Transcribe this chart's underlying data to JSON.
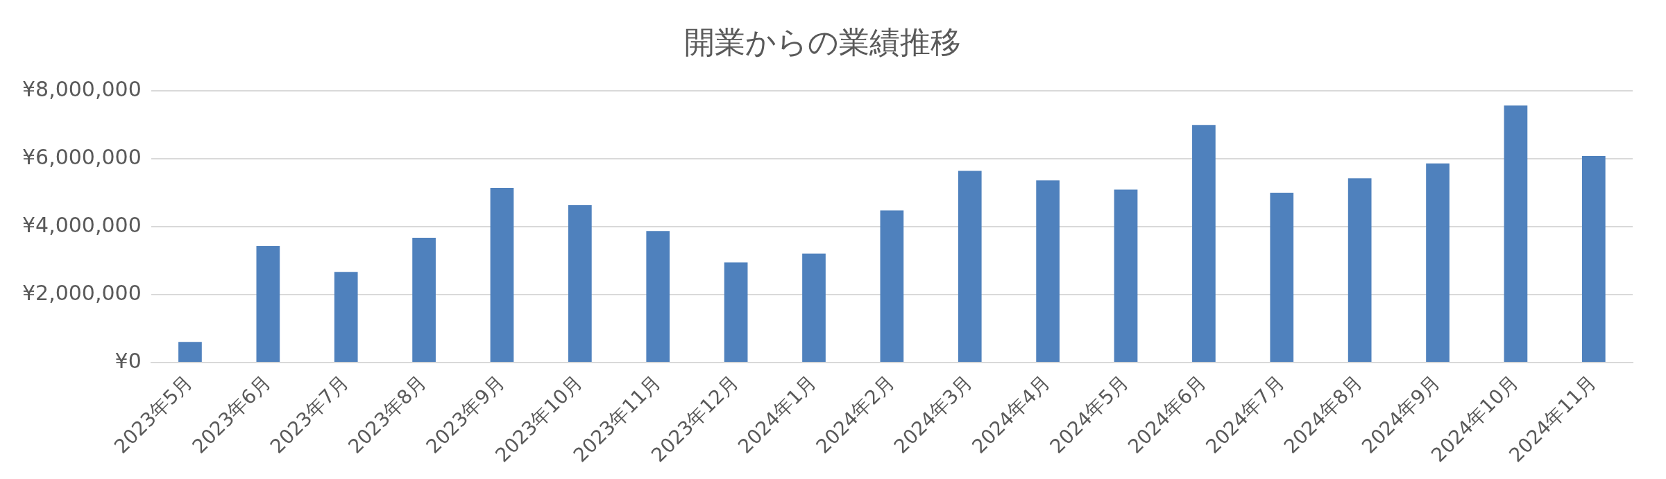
{
  "chart_data": {
    "type": "bar",
    "title": "開業からの業績推移",
    "categories": [
      "2023年5月",
      "2023年6月",
      "2023年7月",
      "2023年8月",
      "2023年9月",
      "2023年10月",
      "2023年11月",
      "2023年12月",
      "2024年1月",
      "2024年2月",
      "2024年3月",
      "2024年4月",
      "2024年5月",
      "2024年6月",
      "2024年7月",
      "2024年8月",
      "2024年9月",
      "2024年10月",
      "2024年11月"
    ],
    "values": [
      610000,
      3430000,
      2670000,
      3670000,
      5140000,
      4630000,
      3870000,
      2950000,
      3210000,
      4480000,
      5640000,
      5360000,
      5090000,
      6990000,
      5000000,
      5420000,
      5860000,
      7560000,
      6080000
    ],
    "color": "#4f81bd",
    "ylim": [
      0,
      8000000
    ],
    "yticks": [
      {
        "value": 0,
        "label": "¥0"
      },
      {
        "value": 2000000,
        "label": "¥2,000,000"
      },
      {
        "value": 4000000,
        "label": "¥4,000,000"
      },
      {
        "value": 6000000,
        "label": "¥6,000,000"
      },
      {
        "value": 8000000,
        "label": "¥8,000,000"
      }
    ],
    "grid": "y",
    "legend": false
  }
}
